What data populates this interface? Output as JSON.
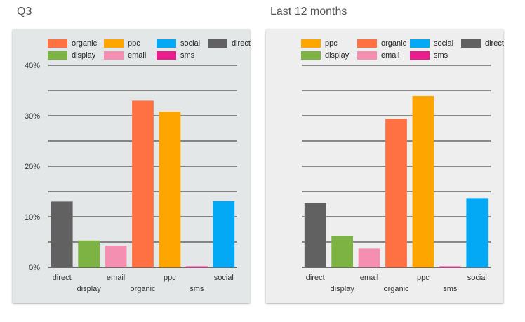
{
  "colors": {
    "organic": "#ff7043",
    "ppc": "#ffa500",
    "social": "#03a9f4",
    "direct": "#616161",
    "display": "#7cb342",
    "email": "#f48fb1",
    "sms": "#e91e8c"
  },
  "chart_data": [
    {
      "type": "bar",
      "title": "Q3",
      "background": "#e4e7e7",
      "legend": [
        "organic",
        "ppc",
        "social",
        "direct",
        "display",
        "email",
        "sms"
      ],
      "categories": [
        "direct",
        "display",
        "email",
        "organic",
        "ppc",
        "sms",
        "social"
      ],
      "values": [
        13.0,
        5.3,
        4.3,
        33.0,
        30.8,
        0.2,
        13.1
      ],
      "ylim": [
        0,
        40
      ],
      "yticks": [
        0,
        10,
        20,
        30,
        40
      ],
      "ytick_labels": [
        "0%",
        "10%",
        "20%",
        "30%",
        "40%"
      ],
      "grid": true
    },
    {
      "type": "bar",
      "title": "Last 12 months",
      "background": "#eeeeee",
      "legend": [
        "ppc",
        "organic",
        "social",
        "direct",
        "display",
        "email",
        "sms"
      ],
      "categories": [
        "direct",
        "display",
        "email",
        "organic",
        "ppc",
        "sms",
        "social"
      ],
      "values": [
        12.7,
        6.2,
        3.7,
        29.4,
        33.9,
        0.2,
        13.7
      ],
      "ylim": [
        0,
        40
      ],
      "yticks": [
        0,
        10,
        20,
        30,
        40
      ],
      "ytick_labels": [],
      "grid": true
    }
  ]
}
